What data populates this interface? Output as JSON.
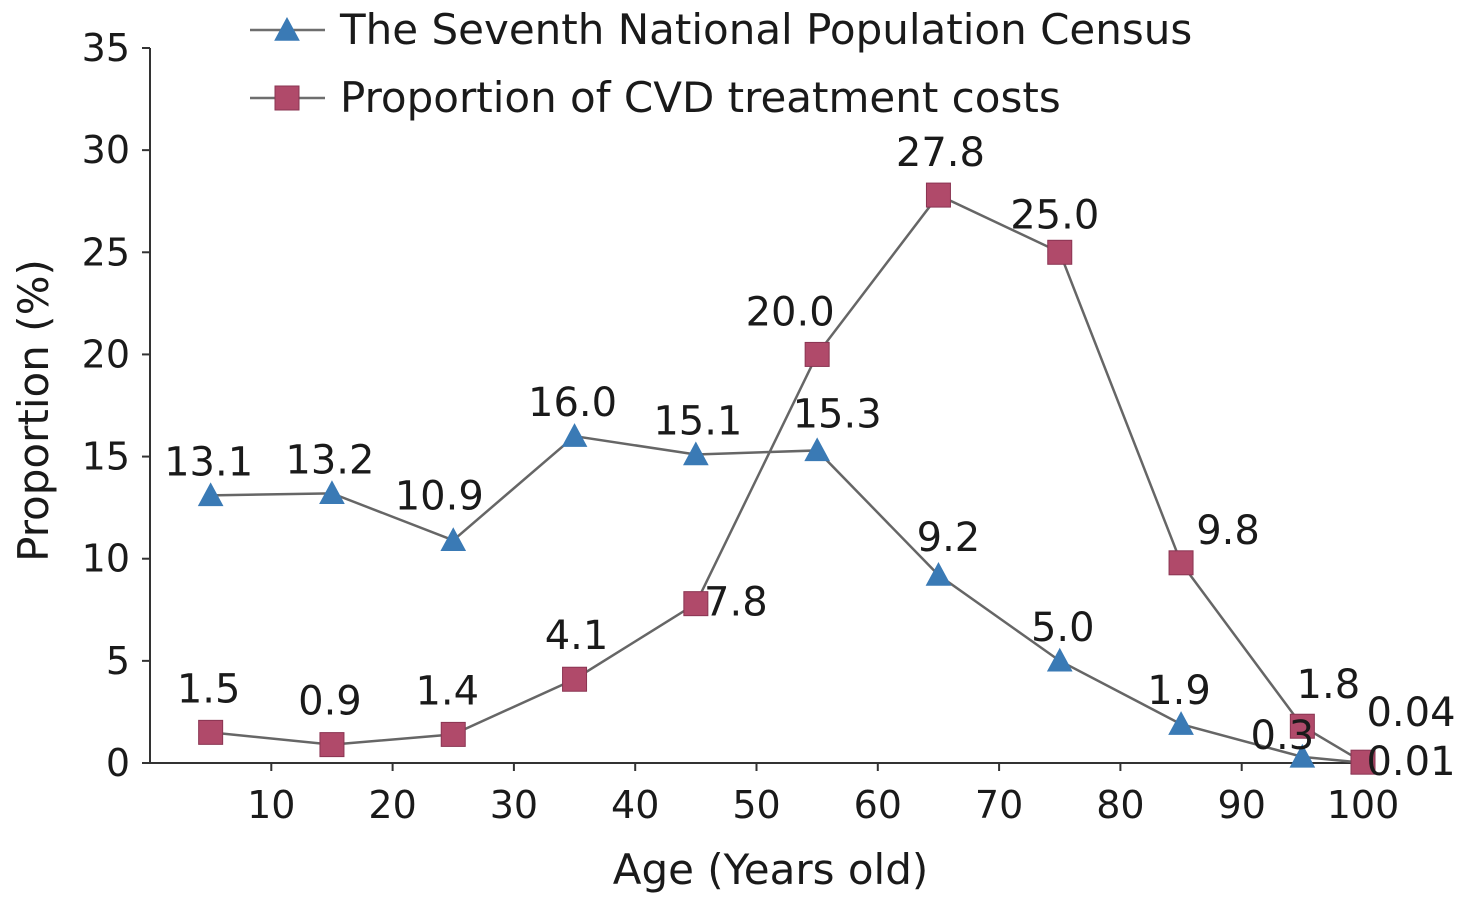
{
  "chart_data": {
    "type": "line",
    "xlabel": "Age (Years old)",
    "ylabel": "Proportion (%)",
    "xlim": [
      0,
      100
    ],
    "ylim": [
      0,
      35
    ],
    "x_ticks": [
      10,
      20,
      30,
      40,
      50,
      60,
      70,
      80,
      90,
      100
    ],
    "y_ticks": [
      0,
      5,
      10,
      15,
      20,
      25,
      30,
      35
    ],
    "grid": false,
    "legend_position": "top",
    "x": [
      5,
      15,
      25,
      35,
      45,
      55,
      65,
      75,
      85,
      95,
      100
    ],
    "series": [
      {
        "name": "The Seventh National Population Census",
        "marker": "triangle",
        "color": "#3a7ab5",
        "line_color": "#6e6e6e",
        "values": [
          13.1,
          13.2,
          10.9,
          16.0,
          15.1,
          15.3,
          9.2,
          5.0,
          1.9,
          0.3,
          0.01
        ],
        "labels": [
          "13.1",
          "13.2",
          "10.9",
          "16.0",
          "15.1",
          "15.3",
          "9.2",
          "5.0",
          "1.9",
          "0.3",
          "0.01"
        ]
      },
      {
        "name": "Proportion of CVD treatment costs",
        "marker": "square",
        "color": "#b04a6a",
        "line_color": "#6e6e6e",
        "values": [
          1.5,
          0.9,
          1.4,
          4.1,
          7.8,
          20.0,
          27.8,
          25.0,
          9.8,
          1.8,
          0.04
        ],
        "labels": [
          "1.5",
          "0.9",
          "1.4",
          "4.1",
          "7.8",
          "20.0",
          "27.8",
          "25.0",
          "9.8",
          "1.8",
          "0.04"
        ]
      }
    ]
  }
}
